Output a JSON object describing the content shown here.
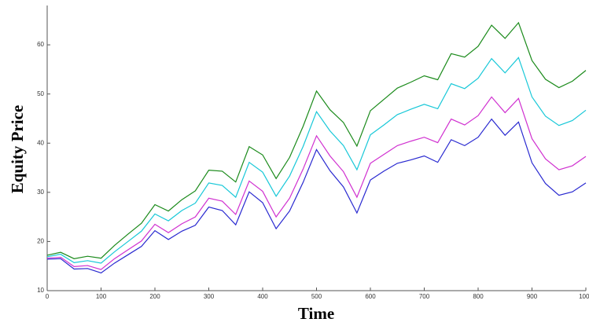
{
  "chart_data": {
    "type": "line",
    "x_label": "Time",
    "y_label": "Equity Price",
    "x": [
      0,
      25,
      50,
      75,
      100,
      125,
      150,
      175,
      200,
      225,
      250,
      275,
      300,
      325,
      350,
      375,
      400,
      425,
      450,
      475,
      500,
      525,
      550,
      575,
      600,
      625,
      650,
      675,
      700,
      725,
      750,
      775,
      800,
      825,
      850,
      875,
      900,
      925,
      950,
      975,
      1000
    ],
    "series": [
      {
        "name": "path-1",
        "color": "#1a8a1a",
        "values": [
          17.2,
          17.8,
          16.5,
          17.0,
          16.6,
          19.2,
          21.5,
          23.7,
          27.5,
          26.2,
          28.5,
          30.3,
          34.5,
          34.3,
          32.1,
          39.3,
          37.6,
          32.8,
          37.1,
          43.4,
          50.6,
          46.8,
          44.2,
          39.4,
          46.6,
          48.9,
          51.2,
          52.4,
          53.7,
          52.9,
          58.2,
          57.5,
          59.7,
          64.0,
          61.3,
          64.5,
          56.8,
          53.0,
          51.3,
          52.6,
          54.8
        ]
      },
      {
        "name": "path-2",
        "color": "#18c8d8",
        "values": [
          16.9,
          17.4,
          15.7,
          16.1,
          15.6,
          17.9,
          20.0,
          22.1,
          25.6,
          24.2,
          26.3,
          27.8,
          31.9,
          31.4,
          29.0,
          36.1,
          34.1,
          29.2,
          33.3,
          39.3,
          46.4,
          42.5,
          39.5,
          34.6,
          41.7,
          43.7,
          45.8,
          46.9,
          47.9,
          47.0,
          52.1,
          51.1,
          53.2,
          57.2,
          54.3,
          57.4,
          49.4,
          45.5,
          43.6,
          44.6,
          46.7
        ]
      },
      {
        "name": "path-3",
        "color": "#d030d0",
        "values": [
          16.6,
          16.8,
          14.9,
          15.1,
          14.3,
          16.5,
          18.3,
          20.1,
          23.5,
          21.8,
          23.6,
          25.0,
          28.8,
          28.2,
          25.5,
          32.3,
          30.2,
          25.0,
          28.8,
          34.7,
          41.5,
          37.4,
          34.2,
          29.0,
          35.9,
          37.7,
          39.5,
          40.4,
          41.2,
          40.1,
          44.9,
          43.7,
          45.6,
          49.4,
          46.2,
          49.1,
          40.9,
          36.8,
          34.6,
          35.4,
          37.3
        ]
      },
      {
        "name": "path-4",
        "color": "#2828d0",
        "values": [
          16.4,
          16.5,
          14.4,
          14.5,
          13.6,
          15.6,
          17.3,
          19.0,
          22.2,
          20.4,
          22.1,
          23.3,
          27.0,
          26.3,
          23.4,
          30.1,
          27.9,
          22.6,
          26.2,
          32.0,
          38.7,
          34.4,
          31.1,
          25.8,
          32.5,
          34.3,
          35.9,
          36.6,
          37.4,
          36.1,
          40.7,
          39.5,
          41.2,
          44.9,
          41.6,
          44.3,
          36.0,
          31.8,
          29.4,
          30.1,
          31.9
        ]
      }
    ],
    "xlim": [
      0,
      1000
    ],
    "ylim": [
      10,
      68
    ],
    "xticks": [
      0,
      100,
      200,
      300,
      400,
      500,
      600,
      700,
      800,
      900,
      1000
    ],
    "yticks": [
      10,
      20,
      30,
      40,
      50,
      60
    ]
  }
}
